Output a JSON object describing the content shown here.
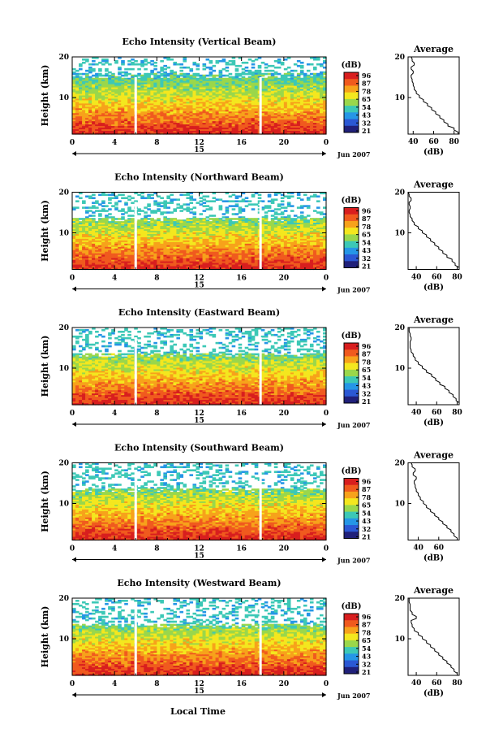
{
  "chart_data": {
    "type": "heatmap",
    "xlabel": "Local Time",
    "date_label": "Jun 2007",
    "time_ticks": [
      "0",
      "4",
      "8",
      "12",
      "16",
      "20",
      "0"
    ],
    "day_label": "15",
    "height_ylabel": "Height (km)",
    "height_ticks": [
      "10",
      "20"
    ],
    "ylim_km": [
      1,
      20
    ],
    "xlim_hours": [
      0,
      24
    ],
    "colorbar": {
      "unit": "(dB)",
      "ticks": [
        "96",
        "87",
        "78",
        "65",
        "54",
        "43",
        "32",
        "21"
      ],
      "colors": [
        "#d81e1e",
        "#f05a1e",
        "#f7a21b",
        "#f4e71e",
        "#9ad74b",
        "#3cc8b6",
        "#2596e6",
        "#2b58d4",
        "#20207a"
      ]
    },
    "average_panel": {
      "title": "Average",
      "xlabel": "(dB)"
    },
    "panels": [
      {
        "title": "Echo Intensity (Vertical Beam)",
        "avg_ticks_x": [
          "40",
          "60",
          "80"
        ],
        "avg_xlim": [
          35,
          85
        ],
        "avg_profile": {
          "height_km": [
            1,
            2,
            3,
            4,
            5,
            6,
            7,
            8,
            9,
            10,
            11,
            12,
            13,
            14,
            15,
            16,
            17,
            18,
            19,
            20
          ],
          "db": [
            84,
            80,
            74,
            70,
            66,
            62,
            58,
            54,
            50,
            46,
            43,
            41,
            40,
            39,
            38,
            40,
            38,
            41,
            39,
            38
          ]
        }
      },
      {
        "title": "Echo Intensity (Northward Beam)",
        "avg_ticks_x": [
          "40",
          "60",
          "80"
        ],
        "avg_xlim": [
          32,
          82
        ],
        "avg_profile": {
          "height_km": [
            1,
            2,
            3,
            4,
            5,
            6,
            7,
            8,
            9,
            10,
            11,
            12,
            13,
            14,
            15,
            16,
            17,
            18,
            19,
            20
          ],
          "db": [
            82,
            78,
            75,
            70,
            66,
            62,
            58,
            54,
            50,
            46,
            42,
            38,
            36,
            34,
            33,
            34,
            33,
            35,
            33,
            32
          ]
        }
      },
      {
        "title": "Echo Intensity (Eastward Beam)",
        "avg_ticks_x": [
          "40",
          "60",
          "80"
        ],
        "avg_xlim": [
          32,
          82
        ],
        "avg_profile": {
          "height_km": [
            1,
            2,
            3,
            4,
            5,
            6,
            7,
            8,
            9,
            10,
            11,
            12,
            13,
            14,
            15,
            16,
            17,
            18,
            19,
            20
          ],
          "db": [
            82,
            79,
            76,
            72,
            68,
            63,
            59,
            55,
            50,
            46,
            42,
            39,
            37,
            35,
            34,
            34,
            35,
            34,
            33,
            33
          ]
        }
      },
      {
        "title": "Echo Intensity (Southward Beam)",
        "avg_ticks_x": [
          "40",
          "60"
        ],
        "avg_xlim": [
          30,
          80
        ],
        "avg_profile": {
          "height_km": [
            1,
            2,
            3,
            4,
            5,
            6,
            7,
            8,
            9,
            10,
            11,
            12,
            13,
            14,
            15,
            16,
            17,
            18,
            19,
            20
          ],
          "db": [
            78,
            75,
            72,
            68,
            64,
            60,
            56,
            52,
            48,
            45,
            42,
            40,
            38,
            37,
            36,
            38,
            35,
            37,
            34,
            33
          ]
        }
      },
      {
        "title": "Echo Intensity (Westward Beam)",
        "avg_ticks_x": [
          "40",
          "60",
          "80"
        ],
        "avg_xlim": [
          32,
          82
        ],
        "avg_profile": {
          "height_km": [
            1,
            2,
            3,
            4,
            5,
            6,
            7,
            8,
            9,
            10,
            11,
            12,
            13,
            14,
            15,
            16,
            17,
            18,
            19,
            20
          ],
          "db": [
            80,
            77,
            74,
            70,
            66,
            62,
            58,
            54,
            50,
            46,
            42,
            38,
            36,
            35,
            40,
            36,
            34,
            34,
            33,
            33
          ]
        }
      }
    ]
  }
}
